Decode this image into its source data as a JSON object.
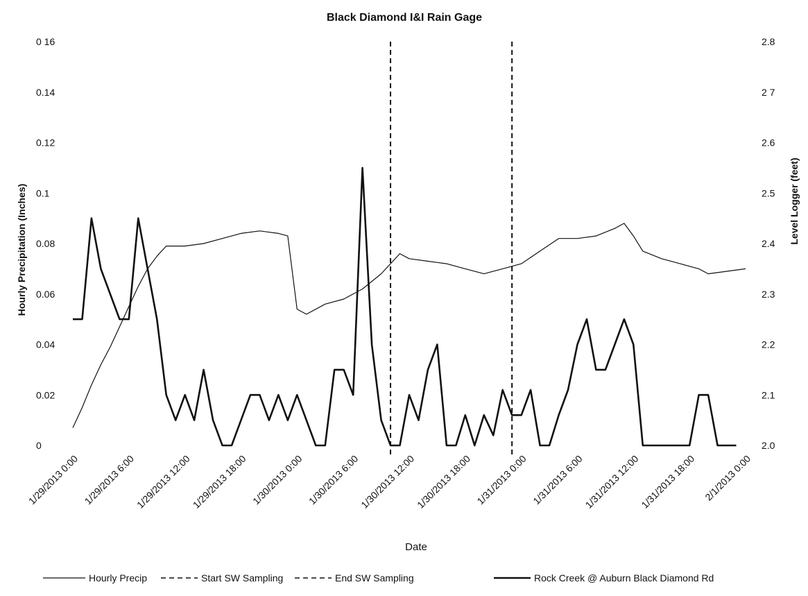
{
  "chart_data": {
    "type": "line",
    "title": "Black Diamond I&I Rain Gage",
    "xlabel": "Date",
    "ylabel": "Hourly Precipitation (Inches)",
    "y2label": "Level Logger (feet)",
    "xlim": [
      "1/29/2013 0:00",
      "2/1/2013 0:00"
    ],
    "ylim": [
      0,
      0.16
    ],
    "y2lim": [
      2.0,
      2.8
    ],
    "x_tick_labels": [
      "1/29/2013 0:00",
      "1/29/2013 6:00",
      "1/29/2013 12:00",
      "1/29/2013 18:00",
      "1/30/2013 0:00",
      "1/30/2013 6:00",
      "1/30/2013 12:00",
      "1/30/2013 18:00",
      "1/31/2013 0:00",
      "1/31/2013 6:00",
      "1/31/2013 12:00",
      "1/31/2013 18:00",
      "2/1/2013 0:00"
    ],
    "y_tick_labels": [
      "0",
      "0.02",
      "0.04",
      "0.06",
      "0.08",
      "0.1",
      "0.12",
      "0.14",
      "0 16"
    ],
    "y2_tick_labels": [
      "2.0",
      "2.1",
      "2.2",
      "2.3",
      "2.4",
      "2.5",
      "2.6",
      "2 7",
      "2.8"
    ],
    "grid": false,
    "legend_position": "bottom",
    "series": [
      {
        "name": "Hourly Precip",
        "axis": "left",
        "style": "solid-thin",
        "points": [
          [
            "1/29/2013 0:00",
            0.007
          ],
          [
            "1/29/2013 1:00",
            0.015
          ],
          [
            "1/29/2013 2:00",
            0.024
          ],
          [
            "1/29/2013 3:00",
            0.032
          ],
          [
            "1/29/2013 4:00",
            0.039
          ],
          [
            "1/29/2013 5:00",
            0.047
          ],
          [
            "1/29/2013 6:00",
            0.055
          ],
          [
            "1/29/2013 7:00",
            0.063
          ],
          [
            "1/29/2013 8:00",
            0.07
          ],
          [
            "1/29/2013 9:00",
            0.075
          ],
          [
            "1/29/2013 10:00",
            0.079
          ],
          [
            "1/29/2013 12:00",
            0.079
          ],
          [
            "1/29/2013 14:00",
            0.08
          ],
          [
            "1/29/2013 16:00",
            0.082
          ],
          [
            "1/29/2013 18:00",
            0.084
          ],
          [
            "1/29/2013 20:00",
            0.085
          ],
          [
            "1/29/2013 22:00",
            0.084
          ],
          [
            "1/29/2013 23:00",
            0.083
          ],
          [
            "1/30/2013 0:00",
            0.054
          ],
          [
            "1/30/2013 1:00",
            0.052
          ],
          [
            "1/30/2013 3:00",
            0.056
          ],
          [
            "1/30/2013 5:00",
            0.058
          ],
          [
            "1/30/2013 7:00",
            0.062
          ],
          [
            "1/30/2013 9:00",
            0.068
          ],
          [
            "1/30/2013 11:00",
            0.076
          ],
          [
            "1/30/2013 12:00",
            0.074
          ],
          [
            "1/30/2013 14:00",
            0.073
          ],
          [
            "1/30/2013 16:00",
            0.072
          ],
          [
            "1/30/2013 18:00",
            0.07
          ],
          [
            "1/30/2013 20:00",
            0.068
          ],
          [
            "1/30/2013 22:00",
            0.07
          ],
          [
            "1/31/2013 0:00",
            0.072
          ],
          [
            "1/31/2013 2:00",
            0.077
          ],
          [
            "1/31/2013 4:00",
            0.082
          ],
          [
            "1/31/2013 6:00",
            0.082
          ],
          [
            "1/31/2013 8:00",
            0.083
          ],
          [
            "1/31/2013 10:00",
            0.086
          ],
          [
            "1/31/2013 11:00",
            0.088
          ],
          [
            "1/31/2013 12:00",
            0.083
          ],
          [
            "1/31/2013 13:00",
            0.077
          ],
          [
            "1/31/2013 15:00",
            0.074
          ],
          [
            "1/31/2013 17:00",
            0.072
          ],
          [
            "1/31/2013 19:00",
            0.07
          ],
          [
            "1/31/2013 20:00",
            0.068
          ],
          [
            "1/31/2013 22:00",
            0.069
          ],
          [
            "2/1/2013 0:00",
            0.07
          ]
        ]
      },
      {
        "name": "Start SW Sampling",
        "axis": "left",
        "style": "dashed",
        "x": "1/30/2013 10:00"
      },
      {
        "name": "End SW Sampling",
        "axis": "left",
        "style": "dashed",
        "x": "1/30/2013 23:00"
      },
      {
        "name": "Rock Creek @ Auburn Black Diamond Rd",
        "axis": "right",
        "style": "solid-thick",
        "points": [
          [
            "1/29/2013 0:00",
            2.25
          ],
          [
            "1/29/2013 1:00",
            2.25
          ],
          [
            "1/29/2013 2:00",
            2.45
          ],
          [
            "1/29/2013 3:00",
            2.35
          ],
          [
            "1/29/2013 4:00",
            2.3
          ],
          [
            "1/29/2013 5:00",
            2.25
          ],
          [
            "1/29/2013 6:00",
            2.25
          ],
          [
            "1/29/2013 7:00",
            2.45
          ],
          [
            "1/29/2013 8:00",
            2.35
          ],
          [
            "1/29/2013 9:00",
            2.25
          ],
          [
            "1/29/2013 10:00",
            2.1
          ],
          [
            "1/29/2013 11:00",
            2.05
          ],
          [
            "1/29/2013 12:00",
            2.1
          ],
          [
            "1/29/2013 13:00",
            2.05
          ],
          [
            "1/29/2013 14:00",
            2.15
          ],
          [
            "1/29/2013 15:00",
            2.05
          ],
          [
            "1/29/2013 16:00",
            2.0
          ],
          [
            "1/29/2013 17:00",
            2.0
          ],
          [
            "1/29/2013 18:00",
            2.05
          ],
          [
            "1/29/2013 19:00",
            2.1
          ],
          [
            "1/29/2013 20:00",
            2.1
          ],
          [
            "1/29/2013 21:00",
            2.05
          ],
          [
            "1/29/2013 22:00",
            2.1
          ],
          [
            "1/29/2013 23:00",
            2.05
          ],
          [
            "1/30/2013 0:00",
            2.1
          ],
          [
            "1/30/2013 1:00",
            2.05
          ],
          [
            "1/30/2013 2:00",
            2.0
          ],
          [
            "1/30/2013 3:00",
            2.0
          ],
          [
            "1/30/2013 4:00",
            2.15
          ],
          [
            "1/30/2013 5:00",
            2.15
          ],
          [
            "1/30/2013 6:00",
            2.1
          ],
          [
            "1/30/2013 7:00",
            2.55
          ],
          [
            "1/30/2013 8:00",
            2.2
          ],
          [
            "1/30/2013 9:00",
            2.05
          ],
          [
            "1/30/2013 10:00",
            2.0
          ],
          [
            "1/30/2013 11:00",
            2.0
          ],
          [
            "1/30/2013 12:00",
            2.1
          ],
          [
            "1/30/2013 13:00",
            2.05
          ],
          [
            "1/30/2013 14:00",
            2.15
          ],
          [
            "1/30/2013 15:00",
            2.2
          ],
          [
            "1/30/2013 16:00",
            2.0
          ],
          [
            "1/30/2013 17:00",
            2.0
          ],
          [
            "1/30/2013 18:00",
            2.06
          ],
          [
            "1/30/2013 19:00",
            2.0
          ],
          [
            "1/30/2013 20:00",
            2.06
          ],
          [
            "1/30/2013 21:00",
            2.02
          ],
          [
            "1/30/2013 22:00",
            2.11
          ],
          [
            "1/30/2013 23:00",
            2.06
          ],
          [
            "1/31/2013 0:00",
            2.06
          ],
          [
            "1/31/2013 1:00",
            2.11
          ],
          [
            "1/31/2013 2:00",
            2.0
          ],
          [
            "1/31/2013 3:00",
            2.0
          ],
          [
            "1/31/2013 4:00",
            2.06
          ],
          [
            "1/31/2013 5:00",
            2.11
          ],
          [
            "1/31/2013 6:00",
            2.2
          ],
          [
            "1/31/2013 7:00",
            2.25
          ],
          [
            "1/31/2013 8:00",
            2.15
          ],
          [
            "1/31/2013 9:00",
            2.15
          ],
          [
            "1/31/2013 10:00",
            2.2
          ],
          [
            "1/31/2013 11:00",
            2.25
          ],
          [
            "1/31/2013 12:00",
            2.2
          ],
          [
            "1/31/2013 13:00",
            2.0
          ],
          [
            "1/31/2013 18:00",
            2.0
          ],
          [
            "1/31/2013 19:00",
            2.1
          ],
          [
            "1/31/2013 20:00",
            2.1
          ],
          [
            "1/31/2013 21:00",
            2.0
          ],
          [
            "1/31/2013 23:00",
            2.0
          ]
        ]
      }
    ],
    "colors": {
      "line": "#111111",
      "background": "#ffffff"
    }
  }
}
